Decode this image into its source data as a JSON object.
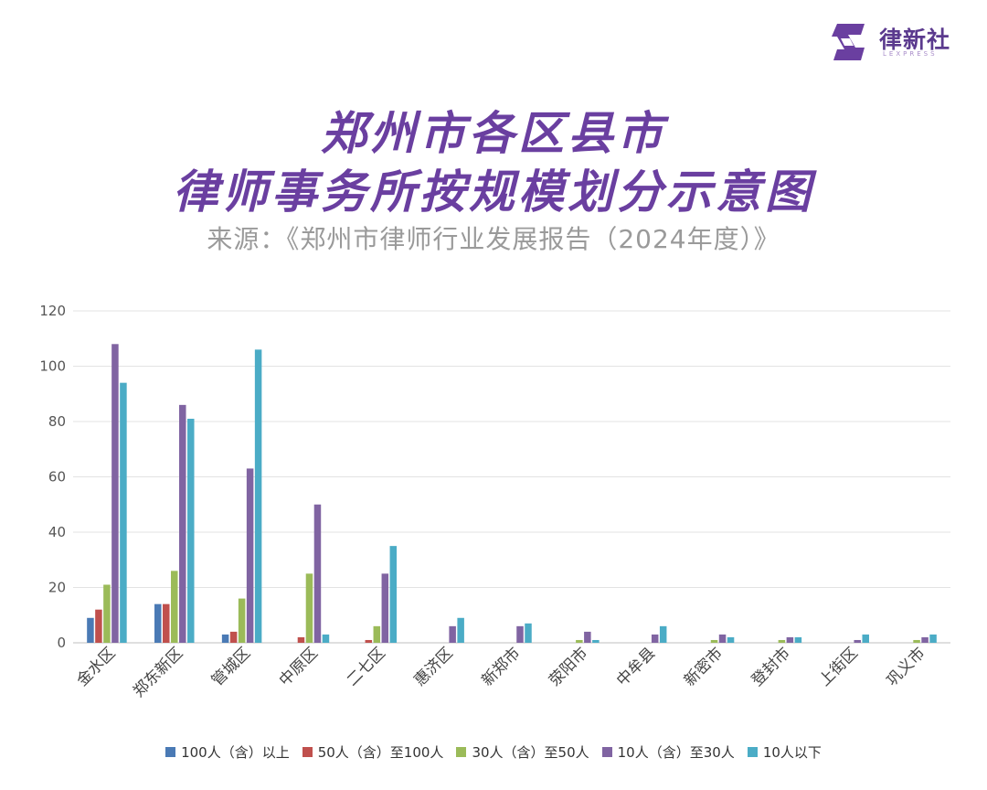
{
  "brand": {
    "name": "律新社",
    "sub": "LEXPRESS"
  },
  "header": {
    "title_line1": "郑州市各区县市",
    "title_line2": "律师事务所按规模划分示意图",
    "source": "来源：《郑州市律师行业发展报告（2024年度）》"
  },
  "colors": {
    "series": [
      "#4a7ab5",
      "#c0504d",
      "#9bbb59",
      "#8064a2",
      "#4bacc6"
    ],
    "brand": "#6a3fa0"
  },
  "chart_data": {
    "type": "bar",
    "categories": [
      "金水区",
      "郑东新区",
      "管城区",
      "中原区",
      "二七区",
      "惠济区",
      "新郑市",
      "荥阳市",
      "中牟县",
      "新密市",
      "登封市",
      "上街区",
      "巩义市"
    ],
    "series": [
      {
        "name": "100人（含）以上",
        "values": [
          9,
          14,
          3,
          0,
          0,
          0,
          0,
          0,
          0,
          0,
          0,
          0,
          0
        ]
      },
      {
        "name": "50人（含）至100人",
        "values": [
          12,
          14,
          4,
          2,
          1,
          0,
          0,
          0,
          0,
          0,
          0,
          0,
          0
        ]
      },
      {
        "name": "30人（含）至50人",
        "values": [
          21,
          26,
          16,
          25,
          6,
          0,
          0,
          1,
          0,
          1,
          1,
          0,
          1
        ]
      },
      {
        "name": "10人（含）至30人",
        "values": [
          108,
          86,
          63,
          50,
          25,
          6,
          6,
          4,
          3,
          3,
          2,
          1,
          2
        ]
      },
      {
        "name": "10人以下",
        "values": [
          94,
          81,
          106,
          3,
          35,
          9,
          7,
          1,
          6,
          2,
          2,
          3,
          3
        ]
      }
    ],
    "ylim": [
      0,
      120
    ],
    "yticks": [
      0,
      20,
      40,
      60,
      80,
      100,
      120
    ],
    "grid": true,
    "legend_position": "bottom"
  }
}
